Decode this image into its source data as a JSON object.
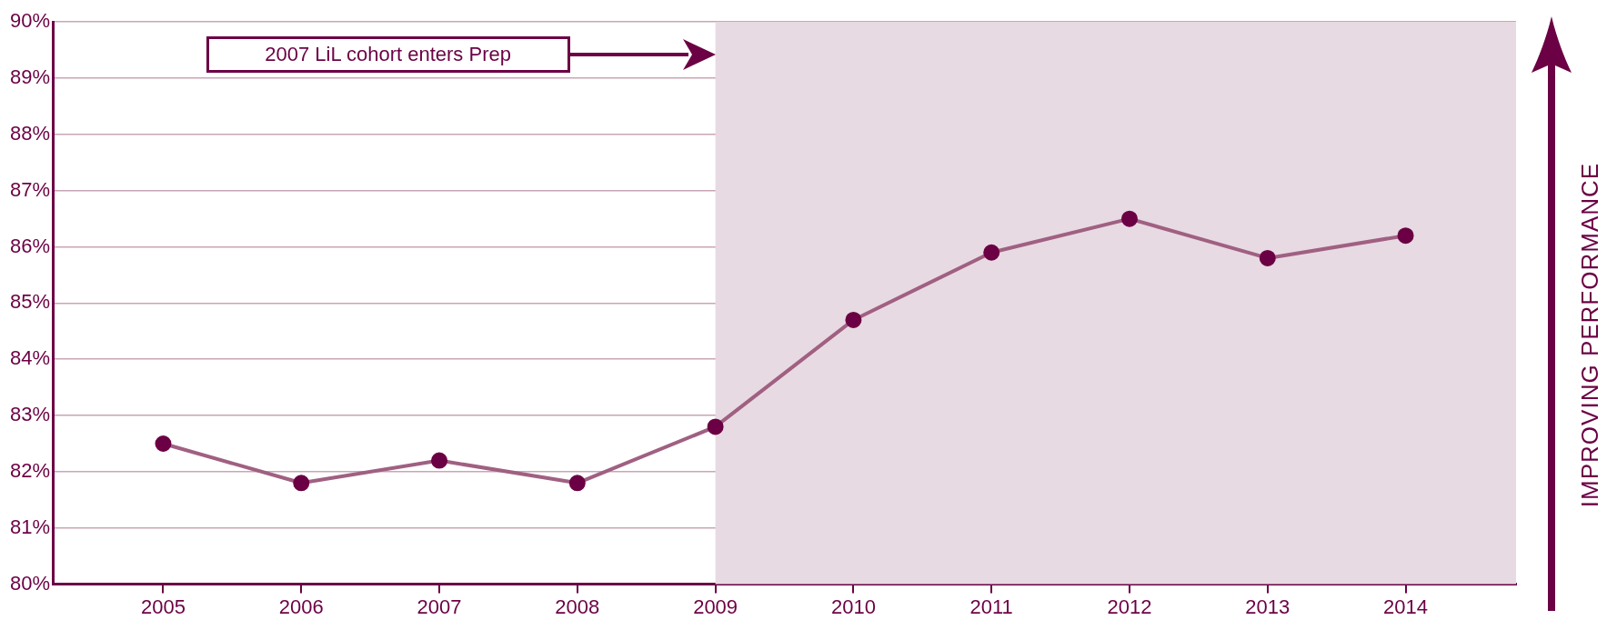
{
  "chart_data": {
    "type": "line",
    "x": [
      2005,
      2006,
      2007,
      2008,
      2009,
      2010,
      2011,
      2012,
      2013,
      2014
    ],
    "series": [
      {
        "color": "#a06082",
        "values": [
          82.5,
          81.8,
          82.2,
          81.8,
          82.8,
          84.7,
          85.9,
          86.5,
          85.8,
          86.2
        ]
      }
    ],
    "xlim": [
      2004.2,
      2014.8
    ],
    "xticks": [
      2005,
      2006,
      2007,
      2008,
      2009,
      2010,
      2011,
      2012,
      2013,
      2014
    ],
    "ylim": [
      80,
      90
    ],
    "yticks": [
      {
        "value": 80,
        "label": "80%"
      },
      {
        "value": 81,
        "label": "81%"
      },
      {
        "value": 82,
        "label": "82%"
      },
      {
        "value": 83,
        "label": "83%"
      },
      {
        "value": 84,
        "label": "84%"
      },
      {
        "value": 85,
        "label": "85%"
      },
      {
        "value": 86,
        "label": "86%"
      },
      {
        "value": 87,
        "label": "87%"
      },
      {
        "value": 88,
        "label": "88%"
      },
      {
        "value": 89,
        "label": "89%"
      },
      {
        "value": 90,
        "label": "90%"
      }
    ],
    "grid": "y",
    "marker": "circle",
    "line_style": "solid",
    "bands": [
      {
        "axis": "x",
        "from": 2009,
        "to": 2014.8,
        "color": "#e8dae2"
      }
    ],
    "annotations": [
      "2007 LiL cohort enters Prep",
      "IMPROVING PERFORMANCE"
    ]
  }
}
